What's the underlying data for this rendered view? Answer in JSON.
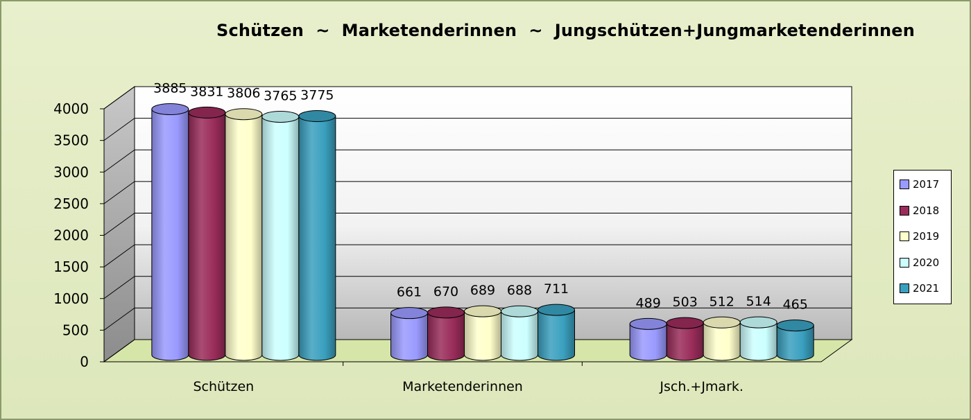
{
  "chart_data": {
    "type": "bar",
    "title": "Schützen  ~  Marketenderinnen  ~  Jungschützen+Jungmarketenderinnen",
    "categories": [
      "Schützen",
      "Marketenderinnen",
      "Jsch.+Jmark."
    ],
    "series": [
      {
        "name": "2017",
        "values": [
          3885,
          661,
          489
        ],
        "color": "#9a9aff"
      },
      {
        "name": "2018",
        "values": [
          3831,
          670,
          503
        ],
        "color": "#9a2c5a"
      },
      {
        "name": "2019",
        "values": [
          3806,
          689,
          512
        ],
        "color": "#ffffcc"
      },
      {
        "name": "2020",
        "values": [
          3765,
          688,
          514
        ],
        "color": "#ccffff"
      },
      {
        "name": "2021",
        "values": [
          3775,
          711,
          465
        ],
        "color": "#3aa0bf"
      }
    ],
    "yticks": [
      0,
      500,
      1000,
      1500,
      2000,
      2500,
      3000,
      3500,
      4000
    ],
    "ylim": [
      0,
      4000
    ],
    "xlabel": "",
    "ylabel": "",
    "grid": true,
    "legend": "right",
    "style": "3d-cylinder"
  }
}
